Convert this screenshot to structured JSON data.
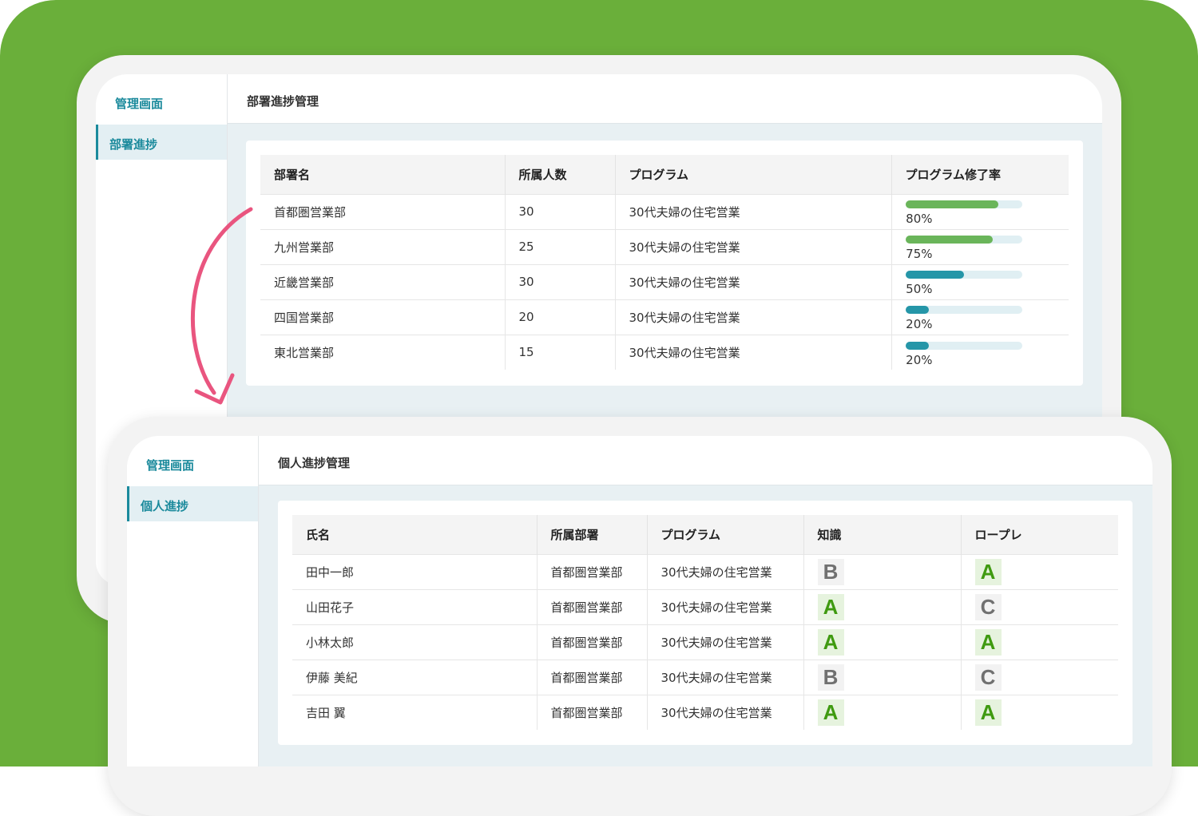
{
  "colors": {
    "background": "#6aaf3a",
    "accent": "#1b8a9c",
    "bar_high": "#6ab55a",
    "bar_low": "#2596a8",
    "arrow": "#e9557f"
  },
  "dept_screen": {
    "sidebar": {
      "title": "管理画面",
      "items": [
        {
          "label": "部署進捗",
          "active": true
        }
      ]
    },
    "header": {
      "title": "部署進捗管理"
    },
    "table": {
      "columns": [
        "部署名",
        "所属人数",
        "プログラム",
        "プログラム修了率"
      ],
      "rows": [
        {
          "dept": "首都圏営業部",
          "members": "30",
          "program": "30代夫婦の住宅営業",
          "rate": 80,
          "rate_label": "80%"
        },
        {
          "dept": "九州営業部",
          "members": "25",
          "program": "30代夫婦の住宅営業",
          "rate": 75,
          "rate_label": "75%"
        },
        {
          "dept": "近畿営業部",
          "members": "30",
          "program": "30代夫婦の住宅営業",
          "rate": 50,
          "rate_label": "50%"
        },
        {
          "dept": "四国営業部",
          "members": "20",
          "program": "30代夫婦の住宅営業",
          "rate": 20,
          "rate_label": "20%"
        },
        {
          "dept": "東北営業部",
          "members": "15",
          "program": "30代夫婦の住宅営業",
          "rate": 20,
          "rate_label": "20%"
        }
      ]
    }
  },
  "person_screen": {
    "sidebar": {
      "title": "管理画面",
      "items": [
        {
          "label": "個人進捗",
          "active": true
        }
      ]
    },
    "header": {
      "title": "個人進捗管理"
    },
    "table": {
      "columns": [
        "氏名",
        "所属部署",
        "プログラム",
        "知識",
        "ロープレ"
      ],
      "rows": [
        {
          "name": "田中一郎",
          "dept": "首都圏営業部",
          "program": "30代夫婦の住宅営業",
          "knowledge": "B",
          "roleplay": "A"
        },
        {
          "name": "山田花子",
          "dept": "首都圏営業部",
          "program": "30代夫婦の住宅営業",
          "knowledge": "A",
          "roleplay": "C"
        },
        {
          "name": "小林太郎",
          "dept": "首都圏営業部",
          "program": "30代夫婦の住宅営業",
          "knowledge": "A",
          "roleplay": "A"
        },
        {
          "name": "伊藤 美紀",
          "dept": "首都圏営業部",
          "program": "30代夫婦の住宅営業",
          "knowledge": "B",
          "roleplay": "C"
        },
        {
          "name": "吉田 翼",
          "dept": "首都圏営業部",
          "program": "30代夫婦の住宅営業",
          "knowledge": "A",
          "roleplay": "A"
        }
      ]
    }
  }
}
